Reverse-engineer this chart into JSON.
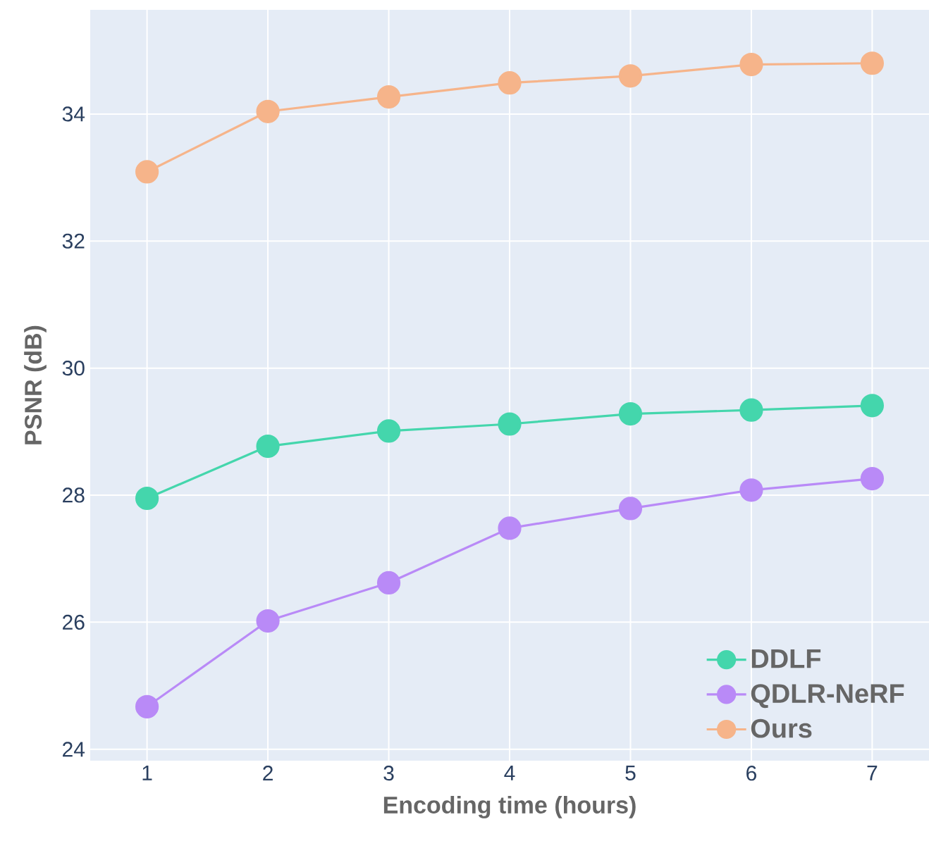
{
  "chart_data": {
    "type": "line",
    "xlabel": "Encoding time (hours)",
    "ylabel": "PSNR (dB)",
    "x": [
      1,
      2,
      3,
      4,
      5,
      6,
      7
    ],
    "series": [
      {
        "name": "DDLF",
        "color": "#44d6ac",
        "values": [
          27.95,
          28.77,
          29.01,
          29.12,
          29.28,
          29.34,
          29.41
        ]
      },
      {
        "name": "QDLR-NeRF",
        "color": "#b98af7",
        "values": [
          24.67,
          26.02,
          26.62,
          27.48,
          27.79,
          28.08,
          28.26
        ]
      },
      {
        "name": "Ours",
        "color": "#f6b48a",
        "values": [
          33.09,
          34.04,
          34.27,
          34.49,
          34.6,
          34.78,
          34.8
        ]
      }
    ],
    "xlim": [
      0.53,
      7.47
    ],
    "ylim": [
      23.82,
      35.64
    ],
    "xticks": [
      1,
      2,
      3,
      4,
      5,
      6,
      7
    ],
    "yticks": [
      24,
      26,
      28,
      30,
      32,
      34
    ],
    "grid": true,
    "legend": "bottom right",
    "marker": "circle",
    "line_style": "solid"
  }
}
